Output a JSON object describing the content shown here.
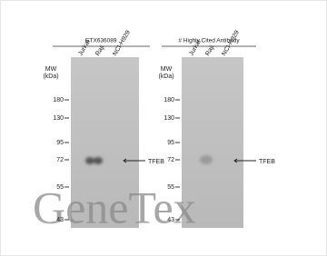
{
  "panels": [
    {
      "header": "GTX636089",
      "lanes": [
        "Jurkat",
        "Raji",
        "NCI-H929"
      ],
      "mw_label": [
        "MW",
        "(kDa)"
      ],
      "markers": [
        "180",
        "130",
        "95",
        "72",
        "55",
        "43"
      ],
      "band_label": "TFEB"
    },
    {
      "header": "# Highly Cited Antibody",
      "lanes": [
        "Jurkat",
        "Raji",
        "NCI-H929"
      ],
      "mw_label": [
        "MW",
        "(kDa)"
      ],
      "markers": [
        "180",
        "130",
        "95",
        "72",
        "55",
        "43"
      ],
      "band_label": "TFEB"
    }
  ],
  "watermark": "GeneTex"
}
